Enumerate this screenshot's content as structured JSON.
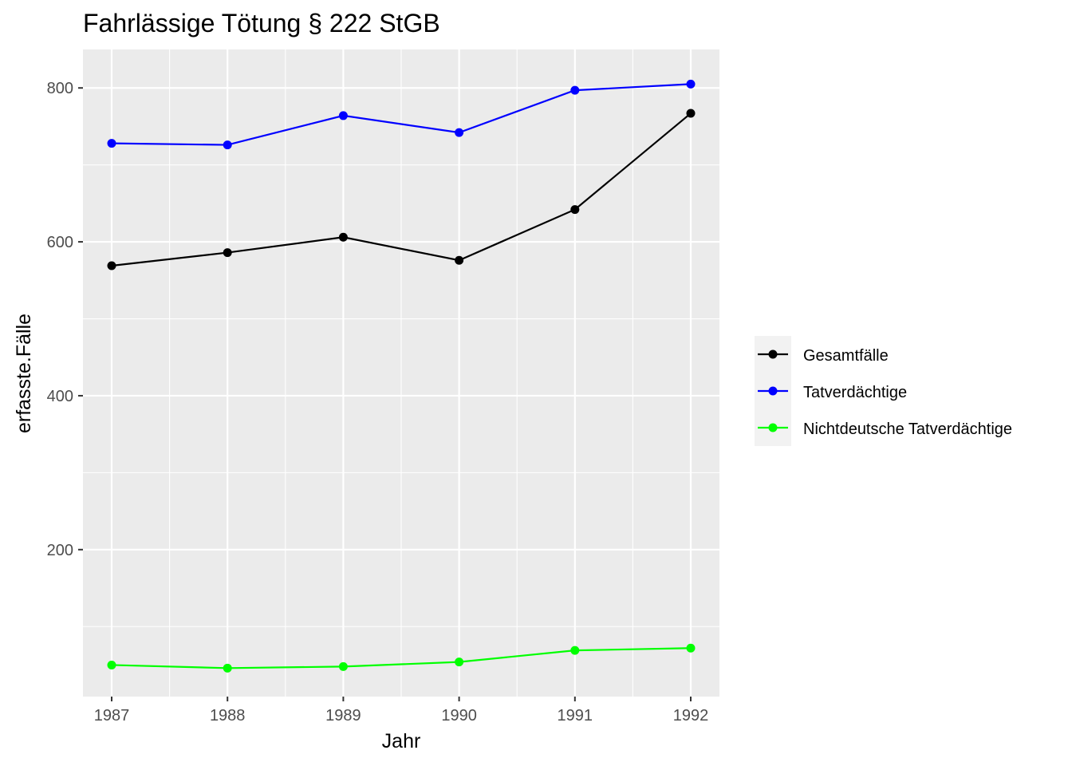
{
  "chart_data": {
    "type": "line",
    "title": "Fahrlässige Tötung § 222 StGB",
    "xlabel": "Jahr",
    "ylabel": "erfasste.Fälle",
    "x": [
      1987,
      1988,
      1989,
      1990,
      1991,
      1992
    ],
    "x_tick_labels": [
      "1987",
      "1988",
      "1989",
      "1990",
      "1991",
      "1992"
    ],
    "ylim": [
      9,
      850
    ],
    "y_ticks": [
      200,
      400,
      600,
      800
    ],
    "y_tick_labels": [
      "200",
      "400",
      "600",
      "800"
    ],
    "grid": true,
    "legend_position": "right",
    "series": [
      {
        "name": "Gesamtfälle",
        "color": "#000000",
        "values": [
          569,
          586,
          606,
          576,
          642,
          767
        ]
      },
      {
        "name": "Tatverdächtige",
        "color": "#0000ff",
        "values": [
          728,
          726,
          764,
          742,
          797,
          805
        ]
      },
      {
        "name": "Nichtdeutsche Tatverdächtige",
        "color": "#00ff00",
        "values": [
          50,
          46,
          48,
          54,
          69,
          72
        ]
      }
    ],
    "panel_background": "#ebebeb",
    "grid_color": "#ffffff"
  }
}
